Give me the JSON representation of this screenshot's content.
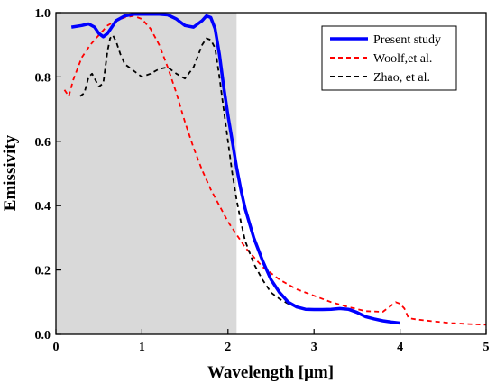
{
  "chart_data": {
    "type": "line",
    "title": "",
    "xlabel": "Wavelength [μm]",
    "ylabel": "Emissivity",
    "xlim": [
      0,
      5
    ],
    "ylim": [
      0,
      1
    ],
    "xticks": [
      "0",
      "1",
      "2",
      "3",
      "4",
      "5"
    ],
    "yticks": [
      "0.0",
      "0.2",
      "0.4",
      "0.6",
      "0.8",
      "1.0"
    ],
    "grid": false,
    "legend_position": "top-right",
    "shaded_region": {
      "x": [
        0,
        2.1
      ],
      "color": "#d9d9d9"
    },
    "series": [
      {
        "name": "Present study",
        "color": "#0000ff",
        "style": "solid",
        "x": [
          0.18,
          0.3,
          0.38,
          0.45,
          0.5,
          0.55,
          0.6,
          0.7,
          0.8,
          0.9,
          1.0,
          1.1,
          1.2,
          1.3,
          1.4,
          1.5,
          1.6,
          1.7,
          1.75,
          1.8,
          1.85,
          1.9,
          1.95,
          2.0,
          2.05,
          2.1,
          2.15,
          2.2,
          2.3,
          2.4,
          2.5,
          2.6,
          2.7,
          2.8,
          2.9,
          3.0,
          3.1,
          3.2,
          3.3,
          3.4,
          3.5,
          3.6,
          3.7,
          3.8,
          3.9,
          4.0
        ],
        "y": [
          0.955,
          0.96,
          0.965,
          0.955,
          0.935,
          0.925,
          0.935,
          0.975,
          0.99,
          0.995,
          0.995,
          0.995,
          0.995,
          0.993,
          0.98,
          0.96,
          0.955,
          0.975,
          0.99,
          0.985,
          0.95,
          0.87,
          0.77,
          0.68,
          0.6,
          0.52,
          0.45,
          0.39,
          0.3,
          0.23,
          0.17,
          0.13,
          0.1,
          0.085,
          0.078,
          0.077,
          0.077,
          0.078,
          0.08,
          0.078,
          0.068,
          0.055,
          0.048,
          0.042,
          0.038,
          0.035
        ]
      },
      {
        "name": "Woolf,et al.",
        "color": "#ff0000",
        "style": "dashed",
        "x": [
          0.1,
          0.15,
          0.2,
          0.3,
          0.4,
          0.5,
          0.6,
          0.7,
          0.8,
          0.9,
          1.0,
          1.1,
          1.2,
          1.3,
          1.4,
          1.5,
          1.6,
          1.7,
          1.8,
          1.9,
          2.0,
          2.2,
          2.4,
          2.6,
          2.8,
          3.0,
          3.2,
          3.4,
          3.6,
          3.8,
          3.95,
          4.0,
          4.05,
          4.1,
          4.2,
          4.4,
          4.6,
          4.8,
          5.0
        ],
        "y": [
          0.76,
          0.74,
          0.79,
          0.86,
          0.9,
          0.93,
          0.96,
          0.975,
          0.985,
          0.99,
          0.98,
          0.95,
          0.9,
          0.83,
          0.75,
          0.66,
          0.58,
          0.51,
          0.45,
          0.4,
          0.35,
          0.27,
          0.21,
          0.17,
          0.14,
          0.12,
          0.1,
          0.085,
          0.072,
          0.07,
          0.1,
          0.095,
          0.08,
          0.05,
          0.046,
          0.04,
          0.035,
          0.032,
          0.03
        ]
      },
      {
        "name": "Zhao, et al.",
        "color": "#000000",
        "style": "dashed",
        "x": [
          0.28,
          0.33,
          0.38,
          0.42,
          0.46,
          0.5,
          0.55,
          0.6,
          0.63,
          0.66,
          0.7,
          0.75,
          0.8,
          0.9,
          1.0,
          1.1,
          1.2,
          1.3,
          1.4,
          1.5,
          1.6,
          1.7,
          1.75,
          1.8,
          1.85,
          1.9,
          1.95,
          2.0,
          2.05,
          2.1,
          2.15,
          2.2,
          2.3,
          2.4,
          2.5,
          2.6,
          2.7,
          2.8,
          2.9,
          3.0,
          3.1,
          3.2
        ],
        "y": [
          0.74,
          0.75,
          0.8,
          0.81,
          0.79,
          0.77,
          0.78,
          0.88,
          0.92,
          0.93,
          0.91,
          0.87,
          0.84,
          0.82,
          0.8,
          0.81,
          0.825,
          0.83,
          0.81,
          0.795,
          0.83,
          0.9,
          0.92,
          0.915,
          0.89,
          0.8,
          0.7,
          0.6,
          0.5,
          0.42,
          0.35,
          0.29,
          0.22,
          0.17,
          0.13,
          0.11,
          0.095,
          0.085,
          0.08,
          0.078,
          0.077,
          0.077
        ]
      }
    ]
  }
}
